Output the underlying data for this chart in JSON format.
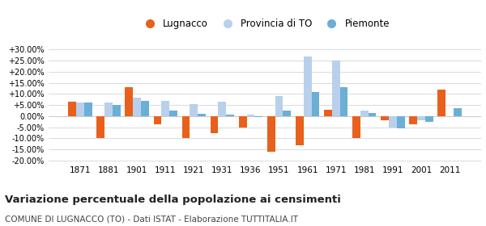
{
  "years": [
    1871,
    1881,
    1901,
    1911,
    1921,
    1931,
    1936,
    1951,
    1961,
    1971,
    1981,
    1991,
    2001,
    2011
  ],
  "lugnacco": [
    6.5,
    -10.0,
    13.0,
    -3.5,
    -10.0,
    -7.5,
    -5.0,
    -16.0,
    -13.0,
    3.0,
    -10.0,
    -2.0,
    -3.5,
    12.0
  ],
  "provincia_to": [
    6.0,
    6.0,
    8.5,
    7.0,
    5.5,
    6.5,
    0.8,
    9.0,
    27.0,
    25.0,
    2.5,
    -5.0,
    -2.0,
    0.0
  ],
  "piemonte": [
    6.0,
    5.0,
    7.0,
    2.5,
    1.0,
    0.8,
    -0.5,
    2.5,
    11.0,
    13.0,
    1.5,
    -5.5,
    -2.5,
    3.5
  ],
  "color_lugnacco": "#e8601c",
  "color_provincia": "#b8d0eb",
  "color_piemonte": "#6baed6",
  "title": "Variazione percentuale della popolazione ai censimenti",
  "subtitle": "COMUNE DI LUGNACCO (TO) - Dati ISTAT - Elaborazione TUTTITALIA.IT",
  "legend_labels": [
    "Lugnacco",
    "Provincia di TO",
    "Piemonte"
  ],
  "ylim": [
    -21,
    32
  ],
  "yticks": [
    -20,
    -15,
    -10,
    -5,
    0,
    5,
    10,
    15,
    20,
    25,
    30
  ],
  "background_color": "#ffffff",
  "grid_color": "#cccccc"
}
